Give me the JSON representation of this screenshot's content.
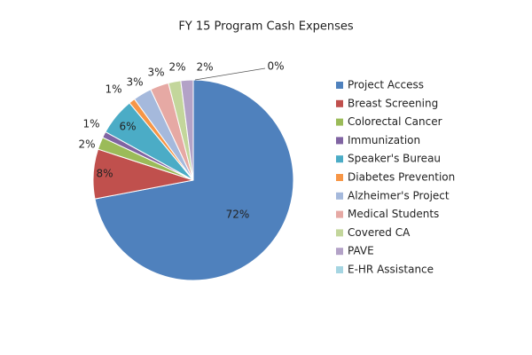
{
  "chart_data": {
    "type": "pie",
    "title": "FY 15 Program Cash Expenses",
    "categories": [
      "Project Access",
      "Breast Screening",
      "Colorectal Cancer",
      "Immunization",
      "Speaker's Bureau",
      "Diabetes Prevention",
      "Alzheimer's Project",
      "Medical Students",
      "Covered CA",
      "PAVE",
      "E-HR Assistance"
    ],
    "values": [
      72,
      8,
      2,
      1,
      6,
      1,
      3,
      3,
      2,
      2,
      0
    ],
    "value_labels": [
      "72%",
      "8%",
      "2%",
      "1%",
      "6%",
      "1%",
      "3%",
      "3%",
      "2%",
      "2%",
      "0%"
    ],
    "colors": [
      "#4f81bd",
      "#c0504d",
      "#9bbb59",
      "#8064a2",
      "#4bacc6",
      "#f79646",
      "#a5b9dc",
      "#e6a9a4",
      "#c3d69b",
      "#b3a2c7",
      "#a5d5e2"
    ],
    "legend": "right"
  }
}
